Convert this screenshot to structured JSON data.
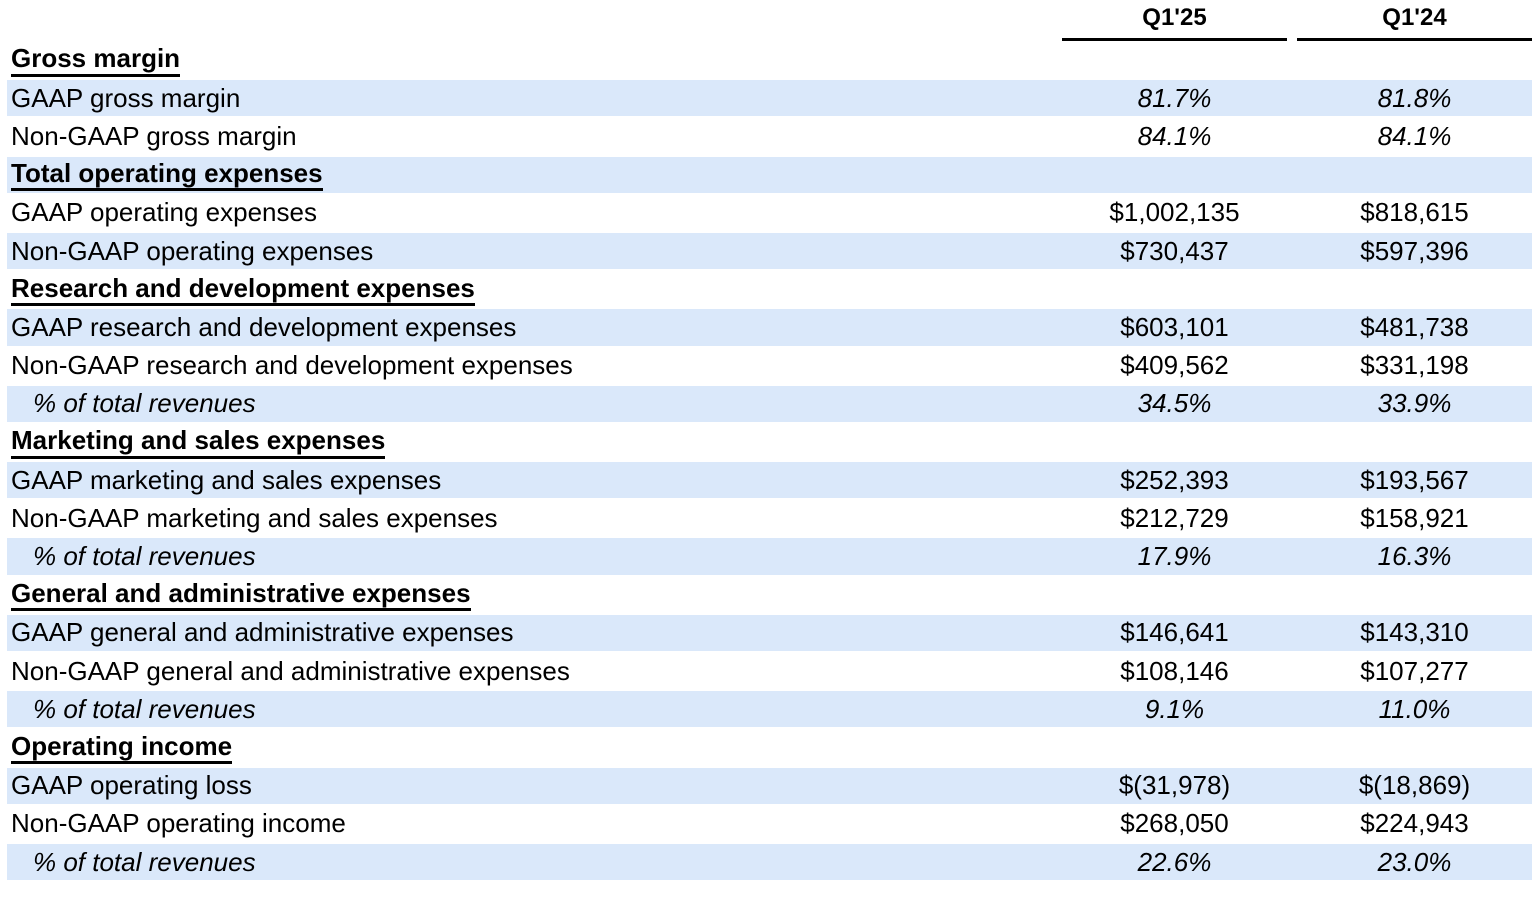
{
  "table": {
    "columns": [
      "Q1'25",
      "Q1'24"
    ],
    "colors": {
      "stripe_blue": "#dae8fa",
      "rule_black": "#000000",
      "text": "#000000"
    },
    "sections": [
      {
        "title": "Gross margin",
        "rows": [
          {
            "label": "GAAP gross margin",
            "q1_25": "81.7%",
            "q1_24": "81.8%",
            "percent_values": true,
            "sub_row": false
          },
          {
            "label": "Non-GAAP gross margin",
            "q1_25": "84.1%",
            "q1_24": "84.1%",
            "percent_values": true,
            "sub_row": false
          }
        ]
      },
      {
        "title": "Total operating expenses",
        "rows": [
          {
            "label": "GAAP operating expenses",
            "q1_25": "$1,002,135",
            "q1_24": "$818,615",
            "percent_values": false,
            "sub_row": false
          },
          {
            "label": "Non-GAAP operating expenses",
            "q1_25": "$730,437",
            "q1_24": "$597,396",
            "percent_values": false,
            "sub_row": false
          }
        ]
      },
      {
        "title": "Research and development expenses",
        "rows": [
          {
            "label": "GAAP research and development expenses",
            "q1_25": "$603,101",
            "q1_24": "$481,738",
            "percent_values": false,
            "sub_row": false
          },
          {
            "label": "Non-GAAP research and development expenses",
            "q1_25": "$409,562",
            "q1_24": "$331,198",
            "percent_values": false,
            "sub_row": false
          },
          {
            "label": "% of total revenues",
            "q1_25": "34.5%",
            "q1_24": "33.9%",
            "percent_values": true,
            "sub_row": true
          }
        ]
      },
      {
        "title": "Marketing and sales expenses",
        "rows": [
          {
            "label": "GAAP marketing and sales expenses",
            "q1_25": "$252,393",
            "q1_24": "$193,567",
            "percent_values": false,
            "sub_row": false
          },
          {
            "label": "Non-GAAP marketing and sales expenses",
            "q1_25": "$212,729",
            "q1_24": "$158,921",
            "percent_values": false,
            "sub_row": false
          },
          {
            "label": "% of total revenues",
            "q1_25": "17.9%",
            "q1_24": "16.3%",
            "percent_values": true,
            "sub_row": true
          }
        ]
      },
      {
        "title": "General and administrative expenses",
        "rows": [
          {
            "label": "GAAP general and administrative expenses",
            "q1_25": "$146,641",
            "q1_24": "$143,310",
            "percent_values": false,
            "sub_row": false
          },
          {
            "label": "Non-GAAP general and administrative expenses",
            "q1_25": "$108,146",
            "q1_24": "$107,277",
            "percent_values": false,
            "sub_row": false
          },
          {
            "label": "% of total revenues",
            "q1_25": "9.1%",
            "q1_24": "11.0%",
            "percent_values": true,
            "sub_row": true
          }
        ]
      },
      {
        "title": "Operating income",
        "rows": [
          {
            "label": "GAAP operating loss",
            "q1_25": "$(31,978)",
            "q1_24": "$(18,869)",
            "percent_values": false,
            "sub_row": false
          },
          {
            "label": "Non-GAAP operating income",
            "q1_25": "$268,050",
            "q1_24": "$224,943",
            "percent_values": false,
            "sub_row": false
          },
          {
            "label": "% of total revenues",
            "q1_25": "22.6%",
            "q1_24": "23.0%",
            "percent_values": true,
            "sub_row": true
          }
        ]
      }
    ]
  }
}
